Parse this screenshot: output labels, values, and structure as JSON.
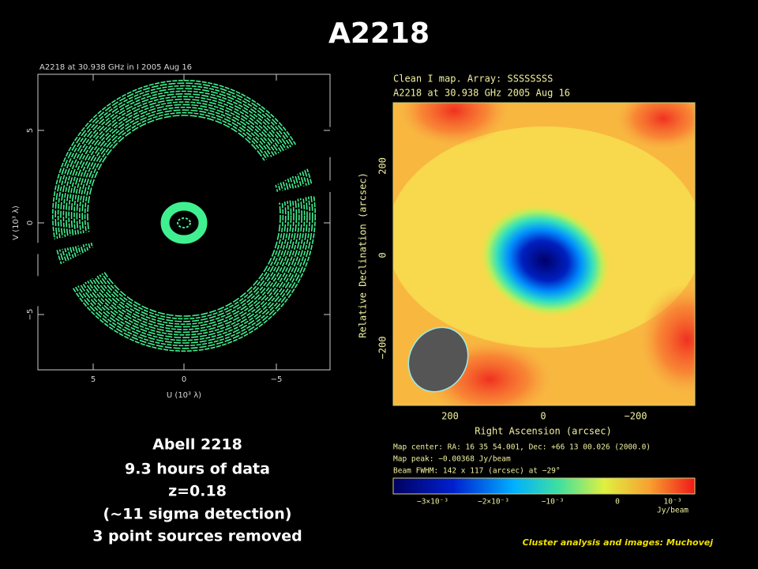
{
  "title": "A2218",
  "uv_plot": {
    "title": "A2218 at 30.938 GHz in I  2005 Aug 16",
    "y_label": "V (10³ λ)",
    "x_label": "U (10³ λ)",
    "y_ticks": [
      "5",
      "0",
      "−5"
    ],
    "x_ticks": [
      "5",
      "0",
      "−5"
    ]
  },
  "map": {
    "title_lines": [
      "Clean I map.  Array:  SSSSSSSS",
      "A2218 at 30.938 GHz 2005 Aug 16"
    ],
    "y_label": "Relative Declination  (arcsec)",
    "x_label": "Right Ascension  (arcsec)",
    "y_ticks": [
      "200",
      "0",
      "−200"
    ],
    "x_ticks": [
      "200",
      "0",
      "−200"
    ],
    "info_lines": [
      "Map center:  RA: 16 35 54.001,  Dec: +66 13 00.026 (2000.0)",
      "Map peak: −0.00368 Jy/beam",
      "Beam FWHM: 142 x 117 (arcsec) at −29°"
    ],
    "colorbar_ticks": [
      "−3×10⁻³",
      "−2×10⁻³",
      "−10⁻³",
      "0",
      "10⁻³"
    ],
    "colorbar_unit": "Jy/beam"
  },
  "caption": [
    "Abell 2218",
    "9.3 hours of data",
    "z=0.18",
    "(~11 sigma detection)",
    "3 point sources removed"
  ],
  "credit": "Cluster analysis and  images: Muchovej"
}
